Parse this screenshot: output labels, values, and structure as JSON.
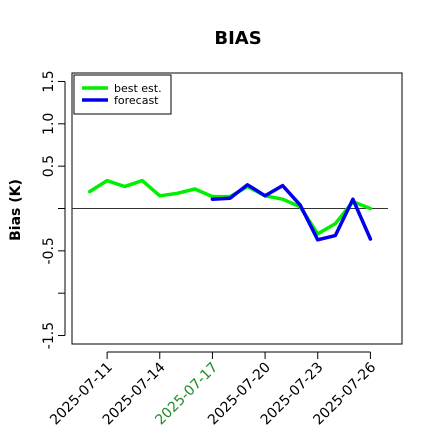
{
  "chart_data": {
    "type": "line",
    "title": "BIAS",
    "ylabel": "Bias (K)",
    "xlabel": "",
    "ylim": [
      -1.6,
      1.6
    ],
    "y_ticks": [
      {
        "value": -1.5,
        "label": "-1.5"
      },
      {
        "value": -0.5,
        "label": "-0.5"
      },
      {
        "value": 0.5,
        "label": "0.5"
      },
      {
        "value": 1.0,
        "label": "1.0"
      },
      {
        "value": 1.5,
        "label": "1.5"
      }
    ],
    "y_minor_ticks": [
      -1.0,
      0.0
    ],
    "x_ticks": [
      {
        "value": 0,
        "label": "2025-07-11",
        "color": "#000000"
      },
      {
        "value": 3,
        "label": "2025-07-14",
        "color": "#000000"
      },
      {
        "value": 6,
        "label": "2025-07-17",
        "color": "#228B22"
      },
      {
        "value": 9,
        "label": "2025-07-20",
        "color": "#000000"
      },
      {
        "value": 12,
        "label": "2025-07-23",
        "color": "#000000"
      },
      {
        "value": 15,
        "label": "2025-07-26",
        "color": "#000000"
      }
    ],
    "xlim": [
      -2.0,
      16.8
    ],
    "reference_line": 0,
    "grid": false,
    "legend_placement": "top-left",
    "series": [
      {
        "name": "best est.",
        "color": "#00ee00",
        "x": [
          -1,
          0,
          1,
          2,
          3,
          4,
          5,
          6,
          7,
          8,
          9,
          10,
          11,
          12,
          13,
          14,
          15
        ],
        "values": [
          0.2,
          0.33,
          0.26,
          0.33,
          0.15,
          0.18,
          0.23,
          0.14,
          0.14,
          0.26,
          0.15,
          0.11,
          0.02,
          -0.3,
          -0.18,
          0.08,
          0.0
        ]
      },
      {
        "name": "forecast",
        "color": "#0000ee",
        "x": [
          6,
          7,
          8,
          9,
          10,
          11,
          12,
          13,
          14,
          15
        ],
        "values": [
          0.11,
          0.12,
          0.28,
          0.15,
          0.27,
          0.04,
          -0.37,
          -0.32,
          0.11,
          -0.36
        ]
      }
    ]
  }
}
